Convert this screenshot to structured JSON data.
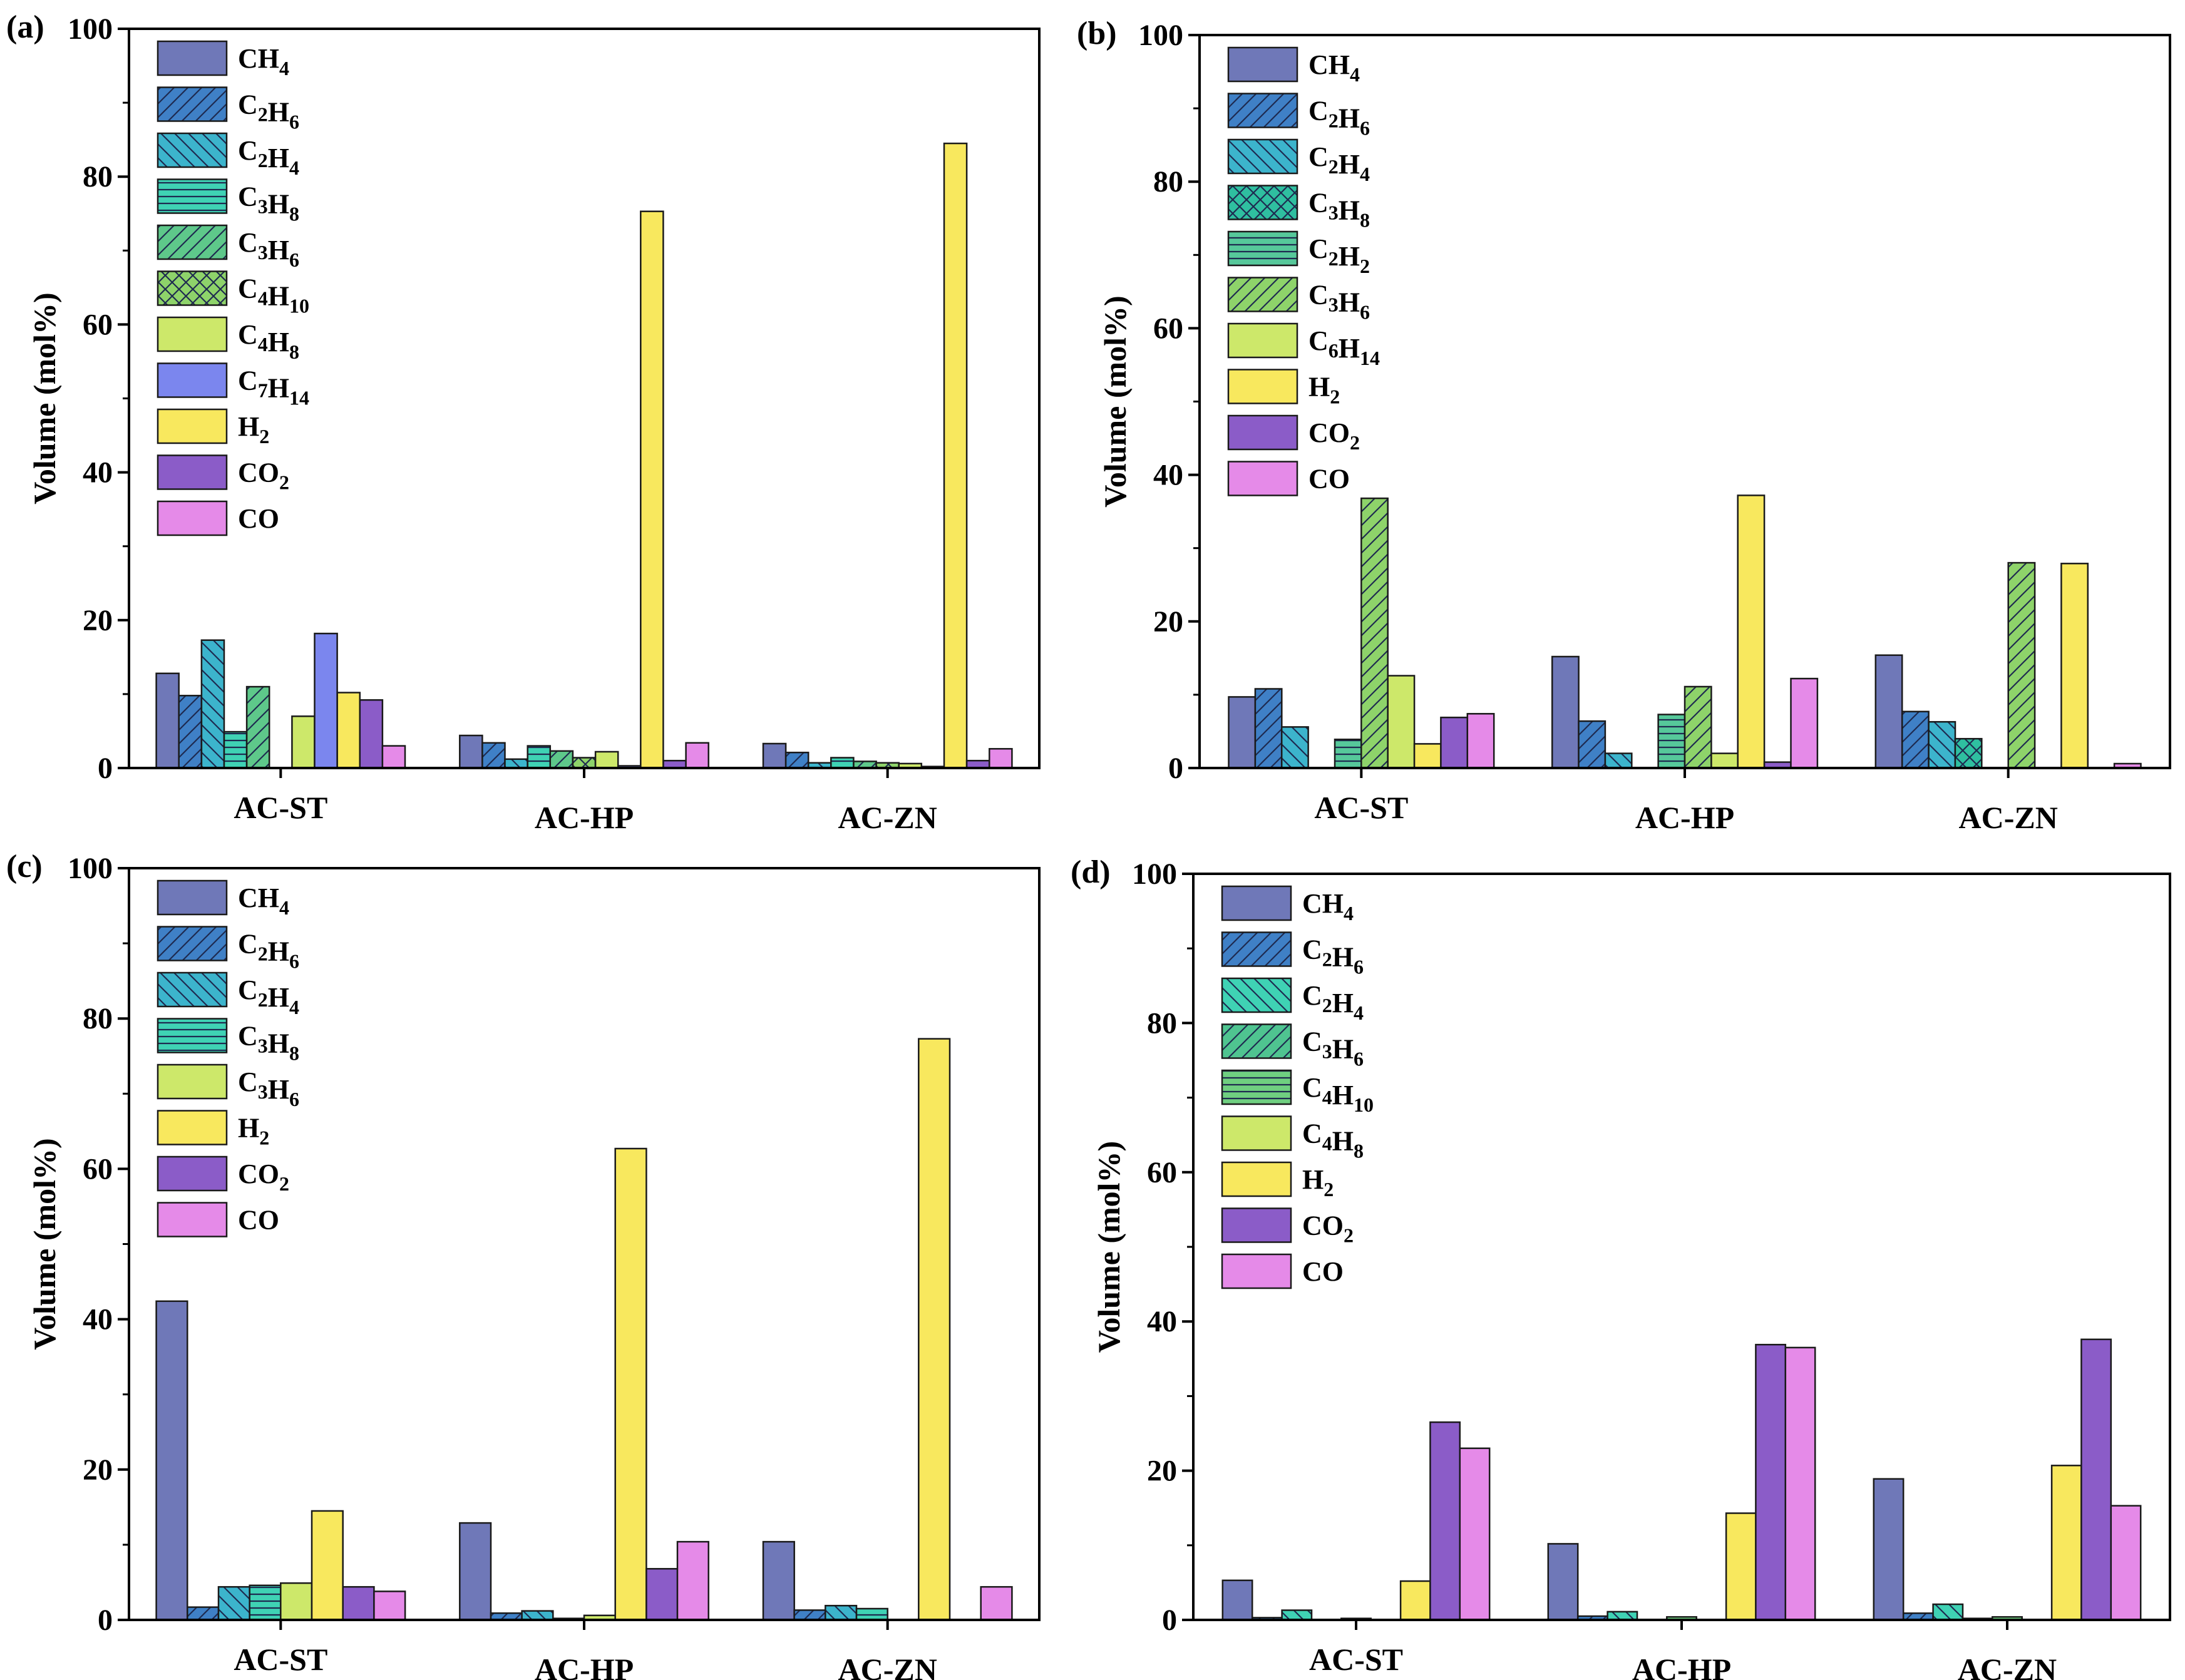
{
  "y_axis_title": "Volume (mol%)",
  "chart_data": [
    {
      "panel": "(a)",
      "type": "bar",
      "categories": [
        "AC-ST",
        "AC-HP",
        "AC-ZN"
      ],
      "ylim": [
        0,
        100
      ],
      "yticks": [
        0,
        20,
        40,
        60,
        80,
        100
      ],
      "ylabel": "Volume (mol%)",
      "legend_position": "top-left",
      "series": [
        {
          "name": "CH4",
          "base": "CH",
          "sub": "4",
          "color": "#6f78b8",
          "pattern": "solid",
          "values": [
            12.8,
            4.4,
            3.3
          ]
        },
        {
          "name": "C2H6",
          "base": "C2H",
          "sub": "6",
          "color": "#3f80c6",
          "pattern": "diag-right",
          "values": [
            9.8,
            3.4,
            2.1
          ]
        },
        {
          "name": "C2H4",
          "base": "C2H",
          "sub": "4",
          "color": "#3cb4cc",
          "pattern": "diag-left",
          "values": [
            17.3,
            1.2,
            0.7
          ]
        },
        {
          "name": "C3H8",
          "base": "C3H",
          "sub": "8",
          "color": "#3fd2b4",
          "pattern": "horizontal",
          "values": [
            4.9,
            3.0,
            1.4
          ]
        },
        {
          "name": "C3H6",
          "base": "C3H",
          "sub": "6",
          "color": "#5ec88a",
          "pattern": "diag-right",
          "values": [
            11.0,
            2.3,
            0.9
          ]
        },
        {
          "name": "C4H10",
          "base": "C4H",
          "sub": "10",
          "color": "#8ed36a",
          "pattern": "cross",
          "values": [
            0,
            1.4,
            0.7
          ]
        },
        {
          "name": "C4H8",
          "base": "C4H",
          "sub": "8",
          "color": "#cde86a",
          "pattern": "solid",
          "values": [
            7.0,
            2.2,
            0.6
          ]
        },
        {
          "name": "C7H14",
          "base": "C7H",
          "sub": "14",
          "color": "#7b86ee",
          "pattern": "solid",
          "values": [
            18.2,
            0.3,
            0.2
          ]
        },
        {
          "name": "H2",
          "base": "H",
          "sub": "2",
          "color": "#f8e85e",
          "pattern": "solid",
          "values": [
            10.2,
            75.3,
            84.5
          ]
        },
        {
          "name": "CO2",
          "base": "CO",
          "sub": "2",
          "color": "#8b5cc8",
          "pattern": "solid",
          "values": [
            9.2,
            1.0,
            1.0
          ]
        },
        {
          "name": "CO",
          "base": "CO",
          "sub": "",
          "color": "#e58ae8",
          "pattern": "solid",
          "values": [
            3.0,
            3.4,
            2.6
          ]
        }
      ]
    },
    {
      "panel": "(b)",
      "type": "bar",
      "categories": [
        "AC-ST",
        "AC-HP",
        "AC-ZN"
      ],
      "ylim": [
        0,
        100
      ],
      "yticks": [
        0,
        20,
        40,
        60,
        80,
        100
      ],
      "ylabel": "Volume (mol%)",
      "legend_position": "top-left",
      "series": [
        {
          "name": "CH4",
          "base": "CH",
          "sub": "4",
          "color": "#6f78b8",
          "pattern": "solid",
          "values": [
            9.7,
            15.2,
            15.4
          ]
        },
        {
          "name": "C2H6",
          "base": "C2H",
          "sub": "6",
          "color": "#3f80c6",
          "pattern": "diag-right",
          "values": [
            10.8,
            6.4,
            7.7
          ]
        },
        {
          "name": "C2H4",
          "base": "C2H",
          "sub": "4",
          "color": "#3cb4cc",
          "pattern": "diag-left",
          "values": [
            5.6,
            2.0,
            6.3
          ]
        },
        {
          "name": "C3H8",
          "base": "C3H",
          "sub": "8",
          "color": "#2fbfa0",
          "pattern": "cross",
          "values": [
            0,
            0,
            4.0
          ]
        },
        {
          "name": "C2H2",
          "base": "C2H",
          "sub": "2",
          "color": "#56c89a",
          "pattern": "horizontal",
          "values": [
            3.9,
            7.3,
            0
          ]
        },
        {
          "name": "C3H6",
          "base": "C3H",
          "sub": "6",
          "color": "#8ed36a",
          "pattern": "diag-right",
          "values": [
            36.8,
            11.1,
            28.0
          ]
        },
        {
          "name": "C6H14",
          "base": "C6H",
          "sub": "14",
          "color": "#cde86a",
          "pattern": "solid",
          "values": [
            12.6,
            2.0,
            0
          ]
        },
        {
          "name": "H2",
          "base": "H",
          "sub": "2",
          "color": "#f8e85e",
          "pattern": "solid",
          "values": [
            3.3,
            37.2,
            27.9
          ]
        },
        {
          "name": "CO2",
          "base": "CO",
          "sub": "2",
          "color": "#8b5cc8",
          "pattern": "solid",
          "values": [
            6.9,
            0.8,
            0
          ]
        },
        {
          "name": "CO",
          "base": "CO",
          "sub": "",
          "color": "#e58ae8",
          "pattern": "solid",
          "values": [
            7.4,
            12.2,
            0.6
          ]
        }
      ]
    },
    {
      "panel": "(c)",
      "type": "bar",
      "categories": [
        "AC-ST",
        "AC-HP",
        "AC-ZN"
      ],
      "ylim": [
        0,
        100
      ],
      "yticks": [
        0,
        20,
        40,
        60,
        80,
        100
      ],
      "ylabel": "Volume (mol%)",
      "legend_position": "top-left",
      "series": [
        {
          "name": "CH4",
          "base": "CH",
          "sub": "4",
          "color": "#6f78b8",
          "pattern": "solid",
          "values": [
            42.4,
            12.9,
            10.4
          ]
        },
        {
          "name": "C2H6",
          "base": "C2H",
          "sub": "6",
          "color": "#3f80c6",
          "pattern": "diag-right",
          "values": [
            1.7,
            0.9,
            1.3
          ]
        },
        {
          "name": "C2H4",
          "base": "C2H",
          "sub": "4",
          "color": "#3cb4cc",
          "pattern": "diag-left",
          "values": [
            4.4,
            1.2,
            1.9
          ]
        },
        {
          "name": "C3H8",
          "base": "C3H",
          "sub": "8",
          "color": "#3fd2b4",
          "pattern": "horizontal",
          "values": [
            4.6,
            0.2,
            1.5
          ]
        },
        {
          "name": "C3H6",
          "base": "C3H",
          "sub": "6",
          "color": "#cde86a",
          "pattern": "solid",
          "values": [
            4.9,
            0.6,
            0
          ]
        },
        {
          "name": "H2",
          "base": "H",
          "sub": "2",
          "color": "#f8e85e",
          "pattern": "solid",
          "values": [
            14.5,
            62.7,
            77.3
          ]
        },
        {
          "name": "CO2",
          "base": "CO",
          "sub": "2",
          "color": "#8b5cc8",
          "pattern": "solid",
          "values": [
            4.4,
            6.8,
            0
          ]
        },
        {
          "name": "CO",
          "base": "CO",
          "sub": "",
          "color": "#e58ae8",
          "pattern": "solid",
          "values": [
            3.8,
            10.4,
            4.4
          ]
        }
      ]
    },
    {
      "panel": "(d)",
      "type": "bar",
      "categories": [
        "AC-ST",
        "AC-HP",
        "AC-ZN"
      ],
      "ylim": [
        0,
        100
      ],
      "yticks": [
        0,
        20,
        40,
        60,
        80,
        100
      ],
      "ylabel": "Volume (mol%)",
      "legend_position": "top-left",
      "series": [
        {
          "name": "CH4",
          "base": "CH",
          "sub": "4",
          "color": "#6f78b8",
          "pattern": "solid",
          "values": [
            5.3,
            10.2,
            18.9
          ]
        },
        {
          "name": "C2H6",
          "base": "C2H",
          "sub": "6",
          "color": "#3f80c6",
          "pattern": "diag-right",
          "values": [
            0.3,
            0.5,
            0.9
          ]
        },
        {
          "name": "C2H4",
          "base": "C2H",
          "sub": "4",
          "color": "#3fd2b4",
          "pattern": "diag-left",
          "values": [
            1.3,
            1.1,
            2.1
          ]
        },
        {
          "name": "C3H6",
          "base": "C3H",
          "sub": "6",
          "color": "#4fc490",
          "pattern": "diag-right",
          "values": [
            0,
            0,
            0.2
          ]
        },
        {
          "name": "C4H10",
          "base": "C4H",
          "sub": "10",
          "color": "#6fcf80",
          "pattern": "horizontal",
          "values": [
            0.2,
            0.4,
            0.4
          ]
        },
        {
          "name": "C4H8",
          "base": "C4H",
          "sub": "8",
          "color": "#cde86a",
          "pattern": "solid",
          "values": [
            0,
            0,
            0
          ]
        },
        {
          "name": "H2",
          "base": "H",
          "sub": "2",
          "color": "#f8e85e",
          "pattern": "solid",
          "values": [
            5.2,
            14.3,
            20.7
          ]
        },
        {
          "name": "CO2",
          "base": "CO",
          "sub": "2",
          "color": "#8b5cc8",
          "pattern": "solid",
          "values": [
            26.5,
            36.9,
            37.6
          ]
        },
        {
          "name": "CO",
          "base": "CO",
          "sub": "",
          "color": "#e58ae8",
          "pattern": "solid",
          "values": [
            23.0,
            36.5,
            15.3
          ]
        }
      ]
    }
  ]
}
